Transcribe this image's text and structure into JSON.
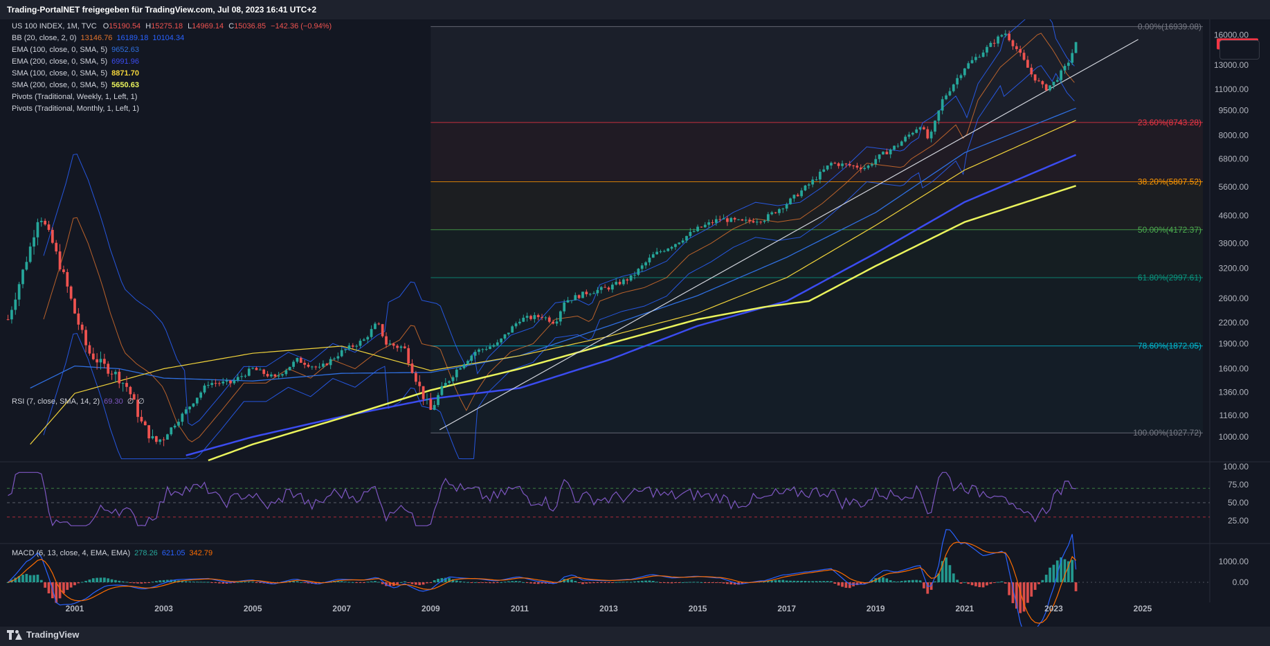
{
  "header": {
    "title": "Trading-PortalNET freigegeben für TradingView.com, Jul 08, 2023 16:41 UTC+2"
  },
  "footer": {
    "brand": "TradingView"
  },
  "legend": {
    "main": {
      "label": "US 100 INDEX, 1M, TVC",
      "o_label": "O",
      "o": "15190.54",
      "h_label": "H",
      "h": "15275.18",
      "l_label": "L",
      "l": "14969.14",
      "c_label": "C",
      "c": "15036.85",
      "chg": "−142.36 (−0.94%)"
    },
    "bb": {
      "label": "BB (20, close, 2, 0)",
      "v1": "13146.76",
      "v2": "16189.18",
      "v3": "10104.34"
    },
    "ema100": {
      "label": "EMA (100, close, 0, SMA, 5)",
      "v": "9652.63"
    },
    "ema200": {
      "label": "EMA (200, close, 0, SMA, 5)",
      "v": "6991.96"
    },
    "sma100": {
      "label": "SMA (100, close, 0, SMA, 5)",
      "v": "8871.70"
    },
    "sma200": {
      "label": "SMA (200, close, 0, SMA, 5)",
      "v": "5650.63"
    },
    "pivots_weekly": "Pivots (Traditional, Weekly, 1, Left, 1)",
    "pivots_monthly": "Pivots (Traditional, Monthly, 1, Left, 1)",
    "rsi": {
      "label": "RSI (7, close, SMA, 14, 2)",
      "v": "69.30",
      "na1": "∅",
      "na2": "∅"
    },
    "macd": {
      "label": "MACD (6, 13, close, 4, EMA, EMA)",
      "v1": "278.26",
      "v2": "621.05",
      "v3": "342.79"
    }
  },
  "colors": {
    "background": "#131722",
    "up": "#26a69a",
    "down": "#ef5350",
    "bb_basis": "#e3742d",
    "bb_band": "#2962ff",
    "ema100": "#2f6fe0",
    "ema200": "#3b4cf0",
    "sma100": "#f2d43b",
    "sma200": "#eaf35c",
    "rsi": "#7e57c2",
    "macd": "#2962ff",
    "signal": "#ff6d00",
    "price_badge": "#f23645",
    "fib_0": "#787b86",
    "fib_236": "#f23645",
    "fib_382": "#ff9800",
    "fib_50": "#4caf50",
    "fib_618": "#089981",
    "fib_786": "#00bcd4",
    "fib_100": "#787b86"
  },
  "chart_data": [
    {
      "type": "candlestick",
      "name": "US 100 INDEX",
      "timeframe": "1M",
      "price_scale": "log",
      "ylim": [
        850,
        17800
      ],
      "x_ticks": [
        "2001",
        "2003",
        "2005",
        "2007",
        "2009",
        "2011",
        "2013",
        "2015",
        "2017",
        "2019",
        "2021",
        "2023",
        "2025"
      ],
      "y_ticks": [
        1000,
        1160,
        1360,
        1600,
        1900,
        2200,
        2600,
        3200,
        3800,
        4600,
        5600,
        6800,
        8000,
        9500,
        11000,
        13000,
        16000
      ],
      "y_tick_labels": [
        "1000.00",
        "1160.00",
        "1360.00",
        "1600.00",
        "1900.00",
        "2200.00",
        "2600.00",
        "3200.00",
        "3800.00",
        "4600.00",
        "5600.00",
        "6800.00",
        "8000.00",
        "9500.00",
        "11000.00",
        "13000.00",
        "16000.00"
      ],
      "last_price": "15036.85",
      "close_approx": {
        "dates": [
          1999.5,
          2000.0,
          2000.2,
          2000.5,
          2000.8,
          2001.0,
          2001.3,
          2001.6,
          2001.9,
          2002.2,
          2002.5,
          2002.8,
          2003.0,
          2003.5,
          2004.0,
          2004.5,
          2005.0,
          2005.5,
          2006.0,
          2006.5,
          2007.0,
          2007.5,
          2007.8,
          2008.0,
          2008.4,
          2008.8,
          2009.0,
          2009.2,
          2009.5,
          2010.0,
          2010.5,
          2011.0,
          2011.5,
          2011.8,
          2012.0,
          2012.5,
          2013.0,
          2013.5,
          2014.0,
          2014.5,
          2015.0,
          2015.5,
          2016.0,
          2016.5,
          2017.0,
          2017.5,
          2018.0,
          2018.8,
          2019.0,
          2019.5,
          2020.0,
          2020.2,
          2020.5,
          2021.0,
          2021.5,
          2021.9,
          2022.2,
          2022.5,
          2022.8,
          2023.0,
          2023.3,
          2023.5
        ],
        "values": [
          2250,
          3700,
          4700,
          3800,
          2900,
          2350,
          1800,
          1650,
          1550,
          1400,
          1100,
          960,
          1000,
          1200,
          1450,
          1450,
          1600,
          1500,
          1700,
          1600,
          1800,
          1950,
          2200,
          1900,
          1850,
          1350,
          1200,
          1350,
          1550,
          1800,
          1900,
          2250,
          2300,
          2200,
          2550,
          2700,
          2800,
          3000,
          3500,
          3800,
          4200,
          4500,
          4400,
          4500,
          5000,
          5700,
          6600,
          6400,
          6800,
          7500,
          8600,
          7700,
          10200,
          12800,
          14600,
          16300,
          14300,
          12200,
          11000,
          11500,
          13000,
          15036.85
        ]
      },
      "fibonacci": [
        {
          "level": "0.00%",
          "price": "16939.08"
        },
        {
          "level": "23.60%",
          "price": "8743.28"
        },
        {
          "level": "38.20%",
          "price": "5807.52"
        },
        {
          "level": "50.00%",
          "price": "4172.37"
        },
        {
          "level": "61.80%",
          "price": "2997.61"
        },
        {
          "level": "78.60%",
          "price": "1872.05"
        },
        {
          "level": "100.00%",
          "price": "1027.72"
        }
      ],
      "fib_range_dates": [
        2009.0,
        2025.0
      ],
      "trendline": {
        "from": [
          2009.2,
          1050
        ],
        "to": [
          2024.9,
          15500
        ]
      },
      "ema100_approx": {
        "dates": [
          2000,
          2001,
          2002,
          2003,
          2005,
          2007,
          2009,
          2011,
          2013,
          2015,
          2017,
          2019,
          2021,
          2023.5
        ],
        "values": [
          1400,
          1630,
          1600,
          1500,
          1470,
          1550,
          1560,
          1750,
          2150,
          2650,
          3450,
          4700,
          7100,
          9652.63
        ]
      },
      "ema200_approx": {
        "dates": [
          2003.5,
          2005,
          2007,
          2009,
          2011,
          2013,
          2015,
          2017,
          2019,
          2021,
          2023.5
        ],
        "values": [
          880,
          1000,
          1150,
          1300,
          1400,
          1700,
          2150,
          2550,
          3550,
          5050,
          6991.96
        ]
      },
      "sma100_approx": {
        "dates": [
          2000,
          2001,
          2003,
          2005,
          2007,
          2009,
          2011,
          2013,
          2015,
          2017,
          2019,
          2021,
          2023.5
        ],
        "values": [
          950,
          1350,
          1600,
          1780,
          1870,
          1580,
          1750,
          2000,
          2350,
          3000,
          4300,
          6300,
          8871.7
        ]
      },
      "sma200_approx": {
        "dates": [
          2004,
          2005,
          2007,
          2009,
          2011,
          2013,
          2015,
          2016.5,
          2017.5,
          2019,
          2021,
          2023.5
        ],
        "values": [
          850,
          950,
          1140,
          1380,
          1600,
          1900,
          2250,
          2450,
          2550,
          3250,
          4400,
          5650.63
        ]
      }
    },
    {
      "type": "line",
      "name": "RSI (7, close, SMA, 14, 2)",
      "ylim": [
        0,
        100
      ],
      "y_ticks": [
        100,
        75,
        50,
        25
      ],
      "y_tick_labels": [
        "100.00",
        "75.00",
        "50.00",
        "25.00"
      ],
      "bands": [
        70,
        50,
        30
      ],
      "last_value": 69.3
    },
    {
      "type": "bar+line",
      "name": "MACD (6, 13, close, 4, EMA, EMA)",
      "y_ticks": [
        1000,
        0
      ],
      "y_tick_labels": [
        "1000.00",
        "0.00"
      ],
      "last_values": [
        278.26,
        621.05,
        342.79
      ]
    }
  ]
}
